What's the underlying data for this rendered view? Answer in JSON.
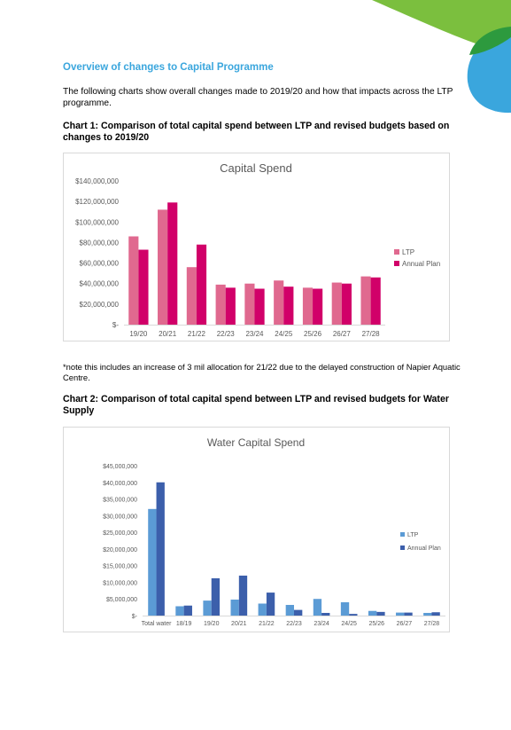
{
  "page": {
    "title": "Overview of changes to Capital Programme",
    "intro": "The following charts show overall changes made to 2019/20 and how that impacts across the LTP programme.",
    "chart1_heading": "Chart 1: Comparison of total capital spend between LTP and revised budgets based on changes to 2019/20",
    "note": "*note this includes an increase of 3 mil allocation for 21/22 due to the delayed construction of Napier Aquatic Centre.",
    "chart2_heading": "Chart 2: Comparison of total capital spend between LTP and revised budgets for Water Supply"
  },
  "colors": {
    "title": "#3aa6dd",
    "deco_green": "#7bbf3e",
    "deco_blue": "#3aa6dd"
  },
  "chart_data": [
    {
      "type": "bar",
      "title": "Capital Spend",
      "categories": [
        "19/20",
        "20/21",
        "21/22",
        "22/23",
        "23/24",
        "24/25",
        "25/26",
        "26/27",
        "27/28"
      ],
      "series": [
        {
          "name": "LTP",
          "color": "#e0698f",
          "values": [
            86000000,
            112000000,
            56000000,
            39000000,
            40000000,
            43000000,
            36000000,
            41000000,
            47000000
          ]
        },
        {
          "name": "Annual Plan",
          "color": "#d10069",
          "values": [
            73000000,
            119000000,
            78000000,
            36000000,
            35000000,
            37000000,
            35000000,
            40000000,
            46000000
          ]
        }
      ],
      "yticks": [
        "$-",
        "$20,000,000",
        "$40,000,000",
        "$60,000,000",
        "$80,000,000",
        "$100,000,000",
        "$120,000,000",
        "$140,000,000"
      ],
      "ylim": [
        0,
        140000000
      ],
      "grid": false,
      "legend": "right"
    },
    {
      "type": "bar",
      "title": "Water Capital Spend",
      "categories": [
        "Total water",
        "18/19",
        "19/20",
        "20/21",
        "21/22",
        "22/23",
        "23/24",
        "24/25",
        "25/26",
        "26/27",
        "27/28"
      ],
      "series": [
        {
          "name": "LTP",
          "color": "#5b9bd5",
          "values": [
            32000000,
            2800000,
            4500000,
            4800000,
            3600000,
            3200000,
            5000000,
            4000000,
            1400000,
            900000,
            800000
          ]
        },
        {
          "name": "Annual Plan",
          "color": "#3c5fab",
          "values": [
            40000000,
            3000000,
            11200000,
            12000000,
            6900000,
            1700000,
            800000,
            500000,
            1100000,
            900000,
            1000000
          ]
        }
      ],
      "yticks": [
        "$-",
        "$5,000,000",
        "$10,000,000",
        "$15,000,000",
        "$20,000,000",
        "$25,000,000",
        "$30,000,000",
        "$35,000,000",
        "$40,000,000",
        "$45,000,000"
      ],
      "ylim": [
        0,
        45000000
      ],
      "grid": false,
      "legend": "right"
    }
  ]
}
